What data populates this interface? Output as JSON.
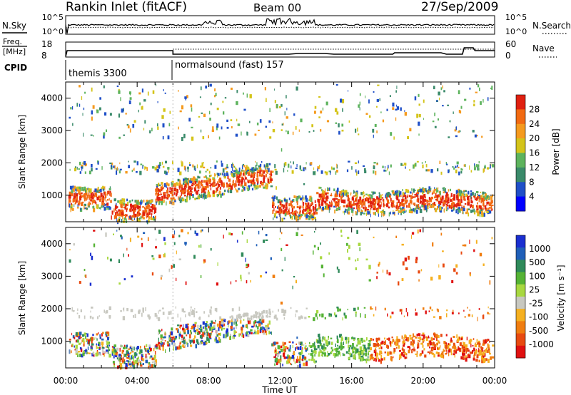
{
  "header": {
    "station": "Rankin Inlet (fitACF)",
    "beam": "Beam 00",
    "date": "27/Sep/2009"
  },
  "noise_panel": {
    "left_label": "N.Sky",
    "right_label": "N.Search",
    "left_ticks": [
      "10^5",
      "10^0"
    ],
    "right_ticks": [
      "10^5",
      "10^0"
    ]
  },
  "freq_panel": {
    "left_label_1": "Freq.",
    "left_label_2": "[MHz]",
    "right_label": "Nave",
    "left_ticks": [
      "18",
      "8"
    ],
    "right_ticks": [
      "60",
      "0"
    ]
  },
  "cpid": {
    "label": "CPID",
    "segments": [
      {
        "text": "themis 3300",
        "start_hour": 0.0
      },
      {
        "text": "normalsound (fast) 157",
        "start_hour": 6.0
      }
    ]
  },
  "chart_data": [
    {
      "type": "heatmap",
      "name": "power",
      "ylabel": "Slant Range [km]",
      "xlabel": "Time UT",
      "xlim_hours": [
        0,
        24
      ],
      "x_ticks": [
        "00:00",
        "04:00",
        "08:00",
        "12:00",
        "16:00",
        "20:00",
        "00:00"
      ],
      "ylim_km": [
        180,
        4500
      ],
      "y_ticks": [
        1000,
        2000,
        3000,
        4000
      ],
      "colorbar": {
        "label": "Power [dB]",
        "ticks": [
          "4",
          "8",
          "12",
          "16",
          "20",
          "24",
          "28"
        ],
        "colors": [
          "#0000ff",
          "#1f4fc8",
          "#3a8a6a",
          "#5db35d",
          "#d4c41a",
          "#f59a1e",
          "#f26a12",
          "#e02010"
        ]
      }
    },
    {
      "type": "heatmap",
      "name": "velocity",
      "ylabel": "Slant Range [km]",
      "xlabel": "Time UT",
      "xlim_hours": [
        0,
        24
      ],
      "x_ticks": [
        "00:00",
        "04:00",
        "08:00",
        "12:00",
        "16:00",
        "20:00",
        "00:00"
      ],
      "ylim_km": [
        180,
        4500
      ],
      "y_ticks": [
        1000,
        2000,
        3000,
        4000
      ],
      "colorbar": {
        "label": "Velocity [m s⁻¹]",
        "ticks": [
          "1000",
          "500",
          "100",
          "25",
          "-25",
          "-100",
          "-500",
          "-1000"
        ],
        "colors": [
          "#1a2fd0",
          "#1f5fb8",
          "#2f8a5a",
          "#55b335",
          "#a8d840",
          "#c8c8c0",
          "#f5b020",
          "#f07d10",
          "#e84a10",
          "#e01010"
        ]
      }
    }
  ],
  "x_axis_title": "Time UT"
}
